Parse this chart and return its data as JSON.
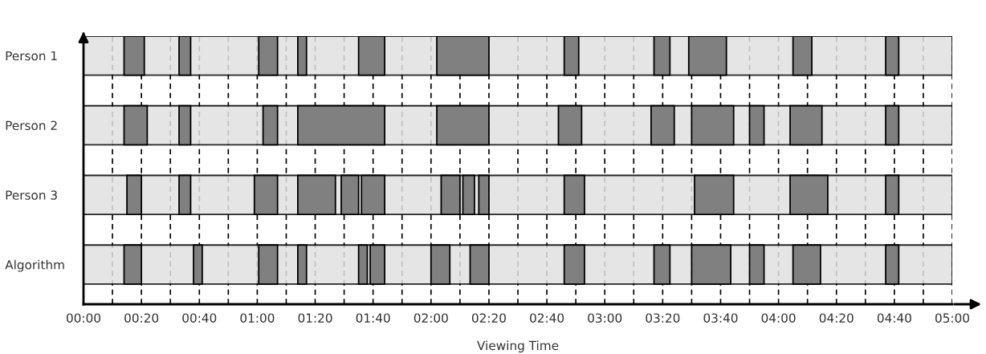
{
  "chart_data": {
    "type": "bar",
    "orientation": "horizontal",
    "xlabel": "Viewing Time",
    "categories": [
      "Person 1",
      "Person 2",
      "Person 3",
      "Algorithm"
    ],
    "series": [
      {
        "color": "#e1e1e1",
        "base": [
          0,
          0,
          0,
          0
        ],
        "values": [
          300,
          300,
          300,
          300
        ]
      },
      {
        "color": "#808080",
        "base": [
          14,
          14,
          15,
          14
        ],
        "values": [
          7,
          8,
          5,
          6
        ]
      },
      {
        "color": "#808080",
        "base": [
          33,
          33,
          33,
          38
        ],
        "values": [
          4,
          4,
          4,
          3
        ]
      },
      {
        "color": "#808080",
        "base": [
          60.5,
          62,
          59,
          60.5
        ],
        "values": [
          6.5,
          5,
          8,
          6.5
        ]
      },
      {
        "color": "#808080",
        "base": [
          74,
          74,
          74,
          74
        ],
        "values": [
          3,
          30,
          13,
          3
        ]
      },
      {
        "color": "#808080",
        "base": [
          95,
          122,
          89,
          95
        ],
        "values": [
          9,
          18,
          6,
          3
        ]
      },
      {
        "color": "#808080",
        "base": [
          122,
          164,
          96,
          99
        ],
        "values": [
          18,
          8,
          8,
          5
        ]
      },
      {
        "color": "#808080",
        "base": [
          166,
          196,
          123.5,
          120
        ],
        "values": [
          5,
          8,
          6.5,
          6.5
        ]
      },
      {
        "color": "#808080",
        "base": [
          197,
          210,
          131,
          133.5
        ],
        "values": [
          5.5,
          14.5,
          4,
          6.5
        ]
      },
      {
        "color": "#808080",
        "base": [
          209,
          230,
          136.5,
          166
        ],
        "values": [
          13,
          5,
          3.5,
          7
        ]
      },
      {
        "color": "#808080",
        "base": [
          245,
          244,
          166,
          197
        ],
        "values": [
          6.5,
          11,
          7,
          5.5
        ]
      },
      {
        "color": "#808080",
        "base": [
          277,
          277,
          211,
          210
        ],
        "values": [
          4.5,
          4.5,
          13.5,
          13.5
        ]
      },
      {
        "color": "#808080",
        "base": [
          null,
          null,
          244,
          230
        ],
        "values": [
          null,
          null,
          13,
          5
        ]
      },
      {
        "color": "#808080",
        "base": [
          null,
          null,
          277,
          245
        ],
        "values": [
          null,
          null,
          4.5,
          9.5
        ]
      },
      {
        "color": "#808080",
        "base": [
          null,
          null,
          null,
          277
        ],
        "values": [
          null,
          null,
          null,
          4.5
        ]
      }
    ],
    "xlim": [
      0,
      300
    ],
    "xticks": [
      {
        "value": 0,
        "label": "00:00"
      },
      {
        "value": 10,
        "label": null
      },
      {
        "value": 20,
        "label": "00:20"
      },
      {
        "value": 30,
        "label": null
      },
      {
        "value": 40,
        "label": "00:40"
      },
      {
        "value": 50,
        "label": null
      },
      {
        "value": 60,
        "label": "01:00"
      },
      {
        "value": 70,
        "label": null
      },
      {
        "value": 80,
        "label": "01:20"
      },
      {
        "value": 90,
        "label": null
      },
      {
        "value": 100,
        "label": "01:40"
      },
      {
        "value": 110,
        "label": null
      },
      {
        "value": 120,
        "label": "02:00"
      },
      {
        "value": 130,
        "label": null
      },
      {
        "value": 140,
        "label": "02:20"
      },
      {
        "value": 150,
        "label": null
      },
      {
        "value": 160,
        "label": "02:40"
      },
      {
        "value": 170,
        "label": null
      },
      {
        "value": 180,
        "label": "03:00"
      },
      {
        "value": 190,
        "label": null
      },
      {
        "value": 200,
        "label": "03:20"
      },
      {
        "value": 210,
        "label": null
      },
      {
        "value": 220,
        "label": "03:40"
      },
      {
        "value": 230,
        "label": null
      },
      {
        "value": 240,
        "label": "04:00"
      },
      {
        "value": 250,
        "label": null
      },
      {
        "value": 260,
        "label": "04:20"
      },
      {
        "value": 270,
        "label": null
      },
      {
        "value": 280,
        "label": "04:40"
      },
      {
        "value": 290,
        "label": null
      },
      {
        "value": 300,
        "label": "05:00"
      }
    ],
    "grid": "x",
    "line_style": "dashed",
    "legend": false
  }
}
